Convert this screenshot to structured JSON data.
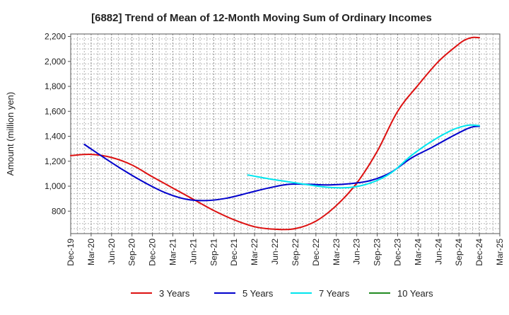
{
  "chart_data": {
    "type": "line",
    "title": "[6882]  Trend of Mean of 12-Month Moving Sum of Ordinary Incomes",
    "xlabel": "",
    "ylabel": "Amount (million yen)",
    "ylim": [
      620,
      2220
    ],
    "yticks": [
      800,
      1000,
      1200,
      1400,
      1600,
      1800,
      2000,
      2200
    ],
    "ytick_labels": [
      "800",
      "1,000",
      "1,200",
      "1,400",
      "1,600",
      "1,800",
      "2,000",
      "2,200"
    ],
    "x_tick_labels": [
      "Dec-19",
      "Mar-20",
      "Jun-20",
      "Sep-20",
      "Dec-20",
      "Mar-21",
      "Jun-21",
      "Sep-21",
      "Dec-21",
      "Mar-22",
      "Jun-22",
      "Sep-22",
      "Dec-22",
      "Mar-23",
      "Jun-23",
      "Sep-23",
      "Dec-23",
      "Mar-24",
      "Jun-24",
      "Sep-24",
      "Dec-24",
      "Mar-25"
    ],
    "x_unit": "months since Dec-19",
    "x_range": [
      0,
      63
    ],
    "grid": true,
    "legend_position": "bottom",
    "series": [
      {
        "name": "3 Years",
        "color": "#dd1111",
        "x": [
          0,
          3,
          6,
          9,
          12,
          15,
          18,
          21,
          24,
          27,
          30,
          33,
          36,
          39,
          42,
          45,
          48,
          51,
          54,
          57,
          58,
          59,
          60
        ],
        "values": [
          1245,
          1255,
          1230,
          1170,
          1075,
          985,
          895,
          805,
          730,
          675,
          655,
          660,
          720,
          845,
          1025,
          1280,
          1600,
          1810,
          2000,
          2140,
          2175,
          2192,
          2190
        ]
      },
      {
        "name": "5 Years",
        "color": "#0000cc",
        "x": [
          2,
          5,
          8,
          11,
          14,
          17,
          20,
          23,
          26,
          29,
          32,
          35,
          38,
          41,
          44,
          47,
          50,
          53,
          56,
          58,
          59,
          60
        ],
        "values": [
          1335,
          1225,
          1120,
          1025,
          945,
          895,
          885,
          905,
          945,
          985,
          1015,
          1015,
          1010,
          1020,
          1045,
          1110,
          1225,
          1310,
          1400,
          1455,
          1475,
          1480
        ]
      },
      {
        "name": "7 Years",
        "color": "#00e5ee",
        "x": [
          26,
          29,
          32,
          35,
          38,
          41,
          44,
          47,
          50,
          53,
          56,
          58,
          59,
          60
        ],
        "values": [
          1090,
          1060,
          1035,
          1010,
          990,
          990,
          1025,
          1105,
          1245,
          1360,
          1450,
          1485,
          1490,
          1485
        ]
      },
      {
        "name": "10 Years",
        "color": "#228b22",
        "x": [],
        "values": []
      }
    ]
  }
}
